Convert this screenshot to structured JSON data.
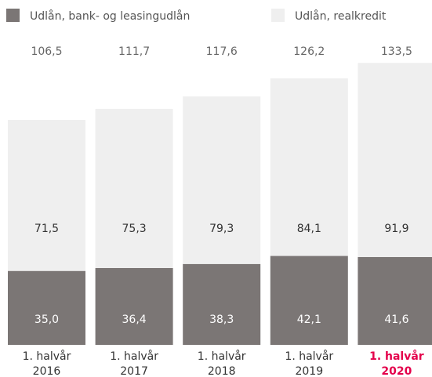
{
  "chart_data": {
    "type": "stacked-bar",
    "category_lines": [
      [
        "1. halvår",
        "2016"
      ],
      [
        "1. halvår",
        "2017"
      ],
      [
        "1. halvår",
        "2018"
      ],
      [
        "1. halvår",
        "2019"
      ],
      [
        "1. halvår",
        "2020"
      ]
    ],
    "highlight_index": 4,
    "highlight_color": "#e4004b",
    "series": [
      {
        "name": "Udlån, bank- og leasingudlån",
        "color": "#7b7675",
        "label_color": "#ffffff",
        "values": [
          35.0,
          36.4,
          38.3,
          42.1,
          41.6
        ],
        "value_labels": [
          "35,0",
          "36,4",
          "38,3",
          "42,1",
          "41,6"
        ]
      },
      {
        "name": "Udlån, realkredit",
        "color": "#efefef",
        "label_color": "#333333",
        "values": [
          71.5,
          75.3,
          79.3,
          84.1,
          91.9
        ],
        "value_labels": [
          "71,5",
          "75,3",
          "79,3",
          "84,1",
          "91,9"
        ]
      }
    ],
    "totals": [
      106.5,
      111.7,
      117.6,
      126.2,
      133.5
    ],
    "total_labels": [
      "106,5",
      "111,7",
      "117,6",
      "126,2",
      "133,5"
    ],
    "ylim": [
      0,
      140
    ]
  }
}
